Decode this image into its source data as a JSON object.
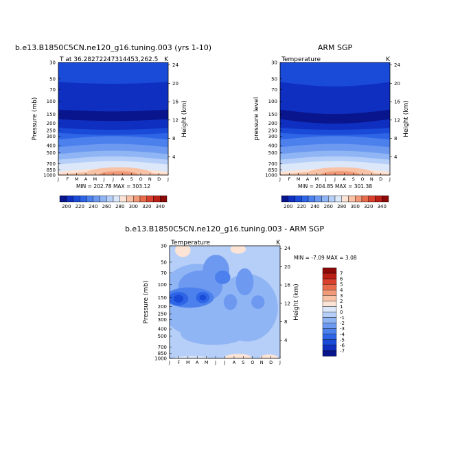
{
  "chart_data": [
    {
      "type": "heatmap",
      "title": "b.e13.B1850C5CN.ne120_g16.tuning.003 (yrs 1-10)",
      "subtitle_left": "T at  36.28272247314453,262.5",
      "subtitle_right": "K",
      "ylabel": "Pressure  (mb)",
      "ylabel_right": "Height  (km)",
      "months": [
        "J",
        "F",
        "M",
        "A",
        "M",
        "J",
        "J",
        "A",
        "S",
        "O",
        "N",
        "D",
        "J"
      ],
      "pressure_ticks": [
        "30",
        "50",
        "70",
        "100",
        "150",
        "200",
        "250",
        "300",
        "400",
        "500",
        "700",
        "850",
        "1000"
      ],
      "height_ticks": [
        "24",
        "20",
        "16",
        "12",
        "8",
        "4"
      ],
      "min_max": "MIN = 202.78  MAX = 303.12",
      "temperature_bands": [
        {
          "p": 30,
          "value": 220
        },
        {
          "p": 50,
          "value": 215
        },
        {
          "p": 70,
          "value": 208
        },
        {
          "p": 100,
          "value": 205
        },
        {
          "p": 150,
          "value": 212
        },
        {
          "p": 200,
          "value": 222
        },
        {
          "p": 250,
          "value": 228
        },
        {
          "p": 300,
          "value": 235
        },
        {
          "p": 400,
          "value": 250
        },
        {
          "p": 500,
          "value": 260
        },
        {
          "p": 700,
          "value": 278
        },
        {
          "p": 850,
          "value": 288
        },
        {
          "p": 1000,
          "value": 300
        }
      ]
    },
    {
      "type": "heatmap",
      "title": "ARM SGP",
      "subtitle_left": "Temperature",
      "subtitle_right": "K",
      "ylabel": "pressure  level",
      "ylabel_right": "Height  (km)",
      "months": [
        "J",
        "F",
        "M",
        "A",
        "M",
        "J",
        "J",
        "A",
        "S",
        "O",
        "N",
        "D",
        "J"
      ],
      "pressure_ticks": [
        "30",
        "50",
        "70",
        "100",
        "150",
        "200",
        "250",
        "300",
        "400",
        "500",
        "700",
        "850",
        "1000"
      ],
      "height_ticks": [
        "24",
        "20",
        "16",
        "12",
        "8",
        "4"
      ],
      "min_max": "MIN = 204.85  MAX = 301.38"
    },
    {
      "type": "heatmap",
      "title": "b.e13.B1850C5CN.ne120_g16.tuning.003 - ARM SGP",
      "subtitle_left": "Temperature",
      "subtitle_right": "K",
      "ylabel": "Pressure  (mb)",
      "ylabel_right": "Height  (km)",
      "months": [
        "J",
        "F",
        "M",
        "A",
        "M",
        "J",
        "J",
        "A",
        "S",
        "O",
        "N",
        "D",
        "J"
      ],
      "pressure_ticks": [
        "30",
        "50",
        "70",
        "100",
        "150",
        "200",
        "250",
        "300",
        "400",
        "500",
        "700",
        "850",
        "1000"
      ],
      "height_ticks": [
        "24",
        "20",
        "16",
        "12",
        "8",
        "4"
      ],
      "min_max": "MIN =  -7.09  MAX =    3.08"
    }
  ],
  "colorbar_abs": {
    "labels": [
      "200",
      "220",
      "240",
      "260",
      "280",
      "300",
      "320",
      "340"
    ],
    "colors": [
      "#08158c",
      "#0f2fc0",
      "#1a4ad8",
      "#2e64e6",
      "#4c80ec",
      "#6d9af0",
      "#90b5f4",
      "#b6cff8",
      "#dce8fa",
      "#fbe3d6",
      "#f8c2a6",
      "#f29a78",
      "#e86b4c",
      "#d9402d",
      "#bb2017",
      "#8c0a08"
    ]
  },
  "colorbar_diff": {
    "labels": [
      "7",
      "6",
      "5",
      "4",
      "3",
      "2",
      "1",
      "0",
      "-1",
      "-2",
      "-3",
      "-4",
      "-5",
      "-6",
      "-7"
    ],
    "colors": [
      "#8c0a08",
      "#bb2017",
      "#d9402d",
      "#e86b4c",
      "#f29a78",
      "#f8c2a6",
      "#fbe3d6",
      "#dce8fa",
      "#b6cff8",
      "#90b5f4",
      "#6d9af0",
      "#4c80ec",
      "#2e64e6",
      "#1a4ad8",
      "#0f2fc0",
      "#08158c"
    ]
  }
}
